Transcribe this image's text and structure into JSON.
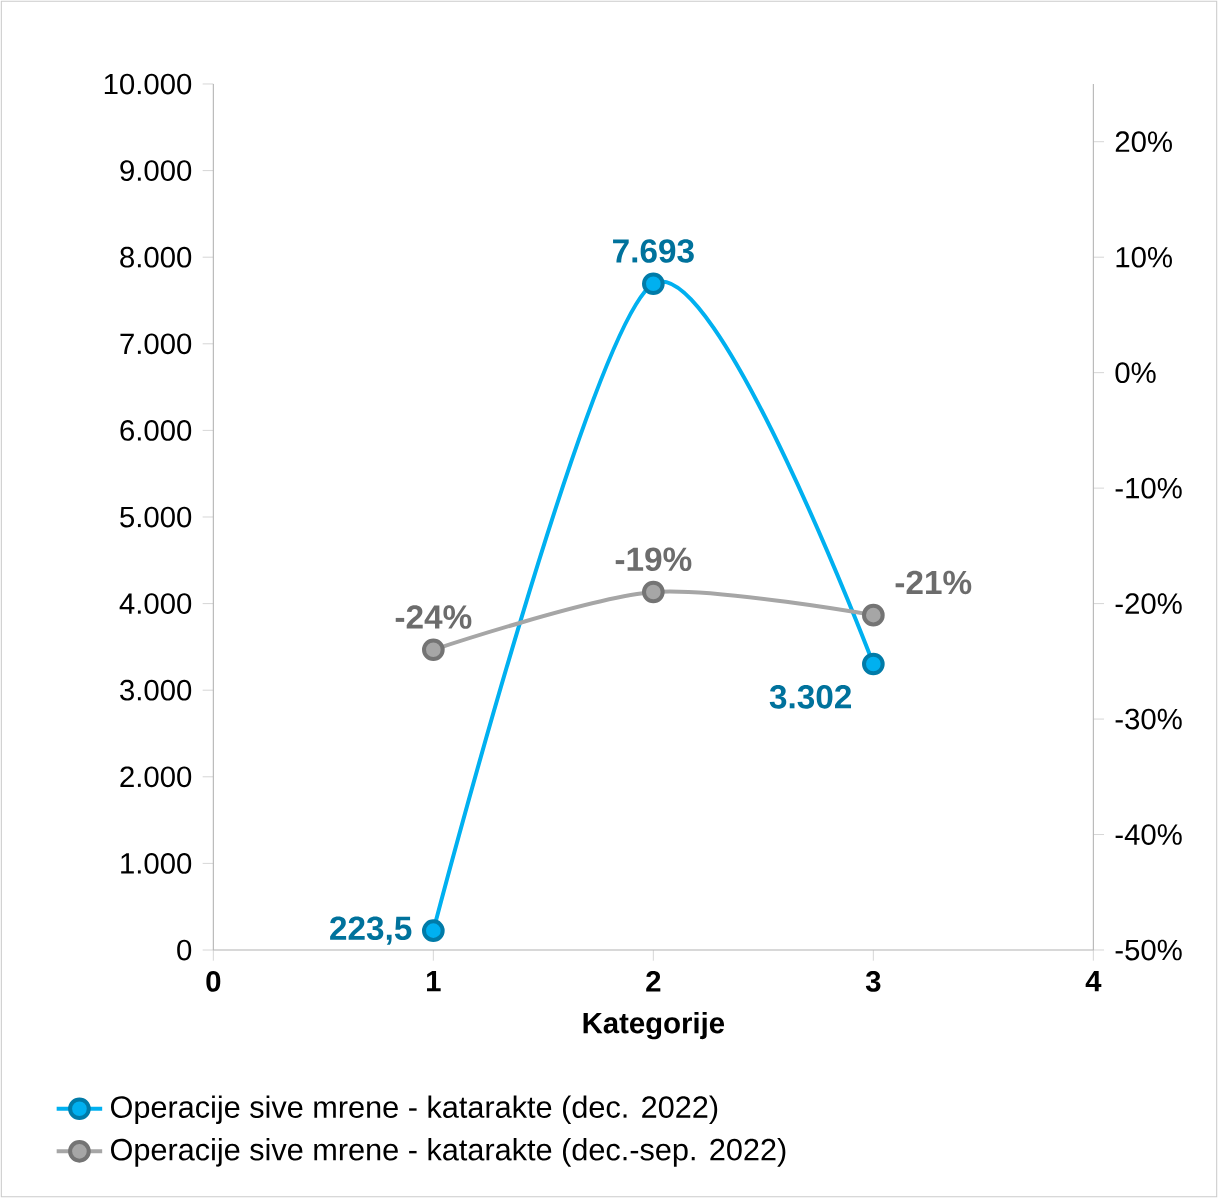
{
  "chart_data": {
    "type": "line",
    "xlabel": "Kategorije",
    "xlim": [
      0,
      4
    ],
    "xticks": [
      0,
      1,
      2,
      3,
      4
    ],
    "ylim": [
      0,
      10000
    ],
    "yticks": [
      {
        "value": 0,
        "label": "0"
      },
      {
        "value": 1000,
        "label": "1.000"
      },
      {
        "value": 2000,
        "label": "2.000"
      },
      {
        "value": 3000,
        "label": "3.000"
      },
      {
        "value": 4000,
        "label": "4.000"
      },
      {
        "value": 5000,
        "label": "5.000"
      },
      {
        "value": 6000,
        "label": "6.000"
      },
      {
        "value": 7000,
        "label": "7.000"
      },
      {
        "value": 8000,
        "label": "8.000"
      },
      {
        "value": 9000,
        "label": "9.000"
      },
      {
        "value": 10000,
        "label": "10.000"
      }
    ],
    "y2lim": [
      -50,
      25
    ],
    "y2ticks": [
      {
        "value": -50,
        "label": "-50%"
      },
      {
        "value": -40,
        "label": "-40%"
      },
      {
        "value": -30,
        "label": "-30%"
      },
      {
        "value": -20,
        "label": "-20%"
      },
      {
        "value": -10,
        "label": "-10%"
      },
      {
        "value": 0,
        "label": "0%"
      },
      {
        "value": 10,
        "label": "10%"
      },
      {
        "value": 20,
        "label": "20%"
      }
    ],
    "series": [
      {
        "name": "Operacije sive mrene - katarakte (dec. 2022)",
        "color": "#00b0f0",
        "x": [
          1,
          2,
          3
        ],
        "values": [
          223.5,
          7693,
          3302
        ],
        "value_labels": [
          "223,5",
          "7.693",
          "3.302"
        ]
      },
      {
        "name": "Operacije sive mrene - katarakte (dec.-sep. 2022)",
        "color": "#a6a6a6",
        "axis": "y2",
        "x": [
          1,
          2,
          3
        ],
        "values": [
          -24,
          -19,
          -21
        ],
        "value_labels": [
          "-24%",
          "-19%",
          "-21%"
        ]
      }
    ],
    "marker": "circle",
    "line_style": "solid",
    "grid": false,
    "legend": "bottom"
  }
}
